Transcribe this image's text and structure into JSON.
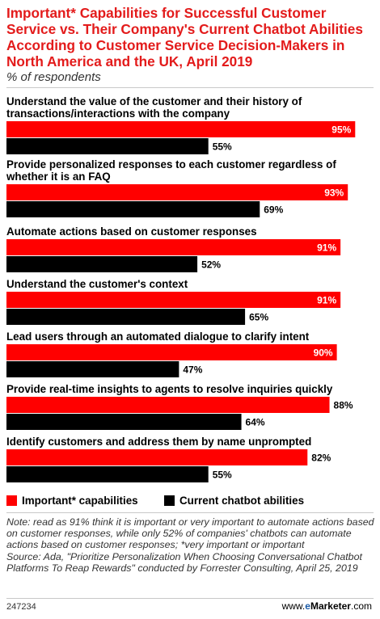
{
  "header": {
    "title": "Important* Capabilities for Successful Customer Service vs. Their Company's Current Chatbot Abilities According to Customer Service Decision-Makers in North America and the UK, April 2019",
    "subtitle": "% of respondents"
  },
  "colors": {
    "important": "#ff0000",
    "current": "#000000",
    "title": "#e31b1b"
  },
  "chart_data": {
    "type": "bar",
    "orientation": "horizontal",
    "categories": [
      [
        "Understand the value of the customer and their history of",
        "transactions/interactions with the company"
      ],
      [
        "Provide personalized responses to each customer regardless of",
        "whether it is an FAQ"
      ],
      [
        "Automate actions based on customer responses"
      ],
      [
        "Understand the customer's context"
      ],
      [
        "Lead users through an automated dialogue to clarify intent"
      ],
      [
        "Provide real-time insights to agents to resolve inquiries quickly"
      ],
      [
        "Identify customers and address them by name unprompted"
      ]
    ],
    "series": [
      {
        "name": "Important* capabilities",
        "values": [
          95,
          93,
          91,
          91,
          90,
          88,
          82
        ],
        "labels": [
          "95%",
          "93%",
          "91%",
          "91%",
          "90%",
          "88%",
          "82%"
        ]
      },
      {
        "name": "Current chatbot abilities",
        "values": [
          55,
          69,
          52,
          65,
          47,
          64,
          55
        ],
        "labels": [
          "55%",
          "69%",
          "52%",
          "65%",
          "47%",
          "64%",
          "55%"
        ]
      }
    ],
    "xlim": [
      0,
      100
    ]
  },
  "legend": {
    "important_label": "Important* capabilities",
    "current_label": "Current chatbot abilities"
  },
  "note": {
    "text": "Note: read as 91% think it is important or very important to automate actions based on customer responses, while only 52% of companies' chatbots can automate actions based on customer responses; *very important or important",
    "source": "Source: Ada, \"Prioritize Personalization When Choosing Conversational Chatbot Platforms To Reap Rewards\" conducted by Forrester Consulting, April 25, 2019"
  },
  "footer": {
    "chart_id": "247234",
    "brand_prefix": "www.",
    "brand_e": "e",
    "brand_main": "Marketer",
    "brand_suffix": ".com"
  }
}
